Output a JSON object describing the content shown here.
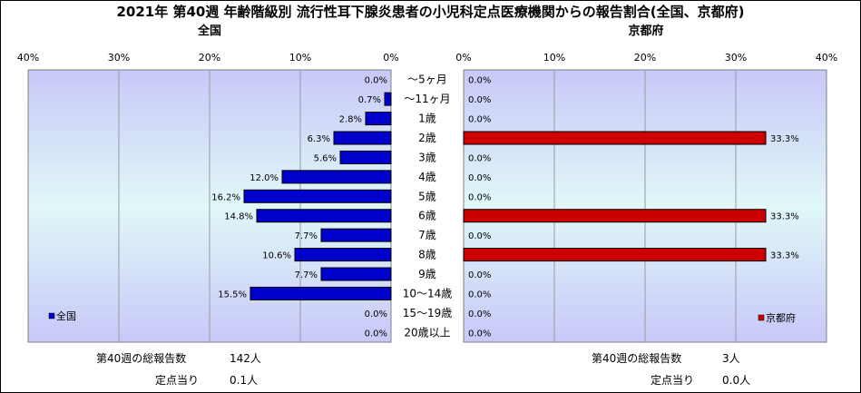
{
  "title": "2021年 第40週 年齢階級別 流行性耳下腺炎患者の小児科定点医療機関からの報告割合(全国、京都府)",
  "left_panel": {
    "title": "全国",
    "legend": "全国",
    "total_label": "第40週の総報告数",
    "total_value": "142人",
    "per_site_label": "定点当り",
    "per_site_value": "0.1人"
  },
  "right_panel": {
    "title": "京都府",
    "legend": "京都府",
    "total_label": "第40週の総報告数",
    "total_value": "3人",
    "per_site_label": "定点当り",
    "per_site_value": "0.0人"
  },
  "colors": {
    "national_bar": "#0000cc",
    "kyoto_bar": "#cc0000",
    "plot_gradient_top": "#c8c8f8",
    "plot_gradient_mid": "#e0f8f8",
    "plot_gradient_bottom": "#c8c8f8"
  },
  "chart_data": {
    "type": "bar",
    "orientation": "horizontal",
    "categories": [
      "〜5ヶ月",
      "〜11ヶ月",
      "1歳",
      "2歳",
      "3歳",
      "4歳",
      "5歳",
      "6歳",
      "7歳",
      "8歳",
      "9歳",
      "10〜14歳",
      "15〜19歳",
      "20歳以上"
    ],
    "xlim": [
      0,
      40
    ],
    "ticks": [
      "0%",
      "10%",
      "20%",
      "30%",
      "40%"
    ],
    "tick_values": [
      0,
      10,
      20,
      30,
      40
    ],
    "grid": true,
    "series": [
      {
        "name": "全国",
        "values": [
          0.0,
          0.7,
          2.8,
          6.3,
          5.6,
          12.0,
          16.2,
          14.8,
          7.7,
          10.6,
          7.7,
          15.5,
          0.0,
          0.0
        ],
        "labels": [
          "0.0%",
          "0.7%",
          "2.8%",
          "6.3%",
          "5.6%",
          "12.0%",
          "16.2%",
          "14.8%",
          "7.7%",
          "10.6%",
          "7.7%",
          "15.5%",
          "0.0%",
          "0.0%"
        ]
      },
      {
        "name": "京都府",
        "values": [
          0.0,
          0.0,
          0.0,
          33.3,
          0.0,
          0.0,
          0.0,
          33.3,
          0.0,
          33.3,
          0.0,
          0.0,
          0.0,
          0.0
        ],
        "labels": [
          "0.0%",
          "0.0%",
          "0.0%",
          "33.3%",
          "0.0%",
          "0.0%",
          "0.0%",
          "33.3%",
          "0.0%",
          "33.3%",
          "0.0%",
          "0.0%",
          "0.0%",
          "0.0%"
        ]
      }
    ]
  }
}
